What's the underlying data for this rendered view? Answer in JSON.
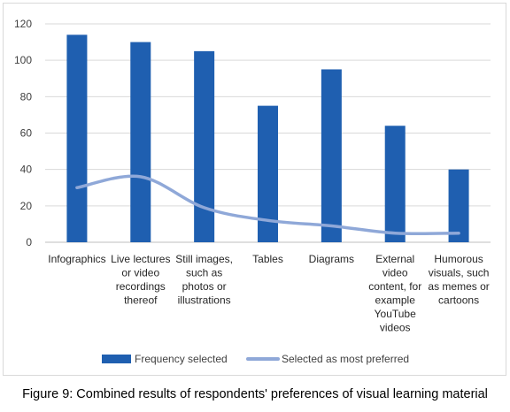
{
  "figure_caption": "Figure 9: Combined results of respondents' preferences of visual learning material",
  "chart_data": {
    "type": "bar",
    "categories": [
      [
        "Infographics"
      ],
      [
        "Live lectures",
        "or video",
        "recordings",
        "thereof"
      ],
      [
        "Still images,",
        "such as",
        "photos or",
        "illustrations"
      ],
      [
        "Tables"
      ],
      [
        "Diagrams"
      ],
      [
        "External",
        "video",
        "content, for",
        "example",
        "YouTube",
        "videos"
      ],
      [
        "Humorous",
        "visuals, such",
        "as memes or",
        "cartoons"
      ]
    ],
    "series": [
      {
        "name": "Frequency selected",
        "type": "bar",
        "color": "#1f5fb0",
        "values": [
          114,
          110,
          105,
          75,
          95,
          64,
          40
        ]
      },
      {
        "name": "Selected as most preferred",
        "type": "line",
        "color": "#8fa8d8",
        "values": [
          30,
          36,
          19,
          12,
          9,
          5,
          5
        ]
      }
    ],
    "yticks": [
      0,
      20,
      40,
      60,
      80,
      100,
      120
    ],
    "ylim": [
      0,
      120
    ],
    "grid": true,
    "legend_position": "bottom"
  }
}
